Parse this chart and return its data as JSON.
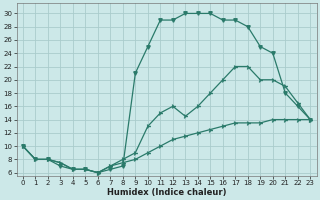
{
  "xlabel": "Humidex (Indice chaleur)",
  "background_color": "#cce8e8",
  "grid_color": "#aacccc",
  "line_color": "#2a7a6a",
  "xlim": [
    -0.5,
    23.5
  ],
  "ylim": [
    5.5,
    31.5
  ],
  "xticks": [
    0,
    1,
    2,
    3,
    4,
    5,
    6,
    7,
    8,
    9,
    10,
    11,
    12,
    13,
    14,
    15,
    16,
    17,
    18,
    19,
    20,
    21,
    22,
    23
  ],
  "yticks": [
    6,
    8,
    10,
    12,
    14,
    16,
    18,
    20,
    22,
    24,
    26,
    28,
    30
  ],
  "line1_x": [
    0,
    1,
    2,
    3,
    4,
    5,
    6,
    7,
    8,
    9,
    10,
    11,
    12,
    13,
    14,
    15,
    16,
    17,
    18,
    19,
    20,
    21,
    22,
    23
  ],
  "line1_y": [
    10,
    8,
    8,
    7,
    6.5,
    6.5,
    6,
    6.5,
    7,
    21,
    25,
    29,
    29,
    30,
    30,
    30,
    29,
    29,
    28,
    25,
    24,
    18,
    16,
    14
  ],
  "line2_x": [
    0,
    1,
    2,
    3,
    4,
    5,
    6,
    7,
    8,
    9,
    10,
    11,
    12,
    13,
    14,
    15,
    16,
    17,
    18,
    19,
    20,
    21,
    22,
    23
  ],
  "line2_y": [
    10,
    8,
    8,
    7.5,
    6.5,
    6.5,
    6,
    7,
    8,
    9,
    13,
    15,
    16,
    14.5,
    16,
    18,
    20,
    22,
    22,
    20,
    20,
    19,
    16.5,
    14
  ],
  "line3_x": [
    0,
    1,
    2,
    3,
    4,
    5,
    6,
    7,
    8,
    9,
    10,
    11,
    12,
    13,
    14,
    15,
    16,
    17,
    18,
    19,
    20,
    21,
    22,
    23
  ],
  "line3_y": [
    10,
    8,
    8,
    7.5,
    6.5,
    6.5,
    6,
    7,
    7.5,
    8,
    9,
    10,
    11,
    11.5,
    12,
    12.5,
    13,
    13.5,
    13.5,
    13.5,
    14,
    14,
    14,
    14
  ]
}
